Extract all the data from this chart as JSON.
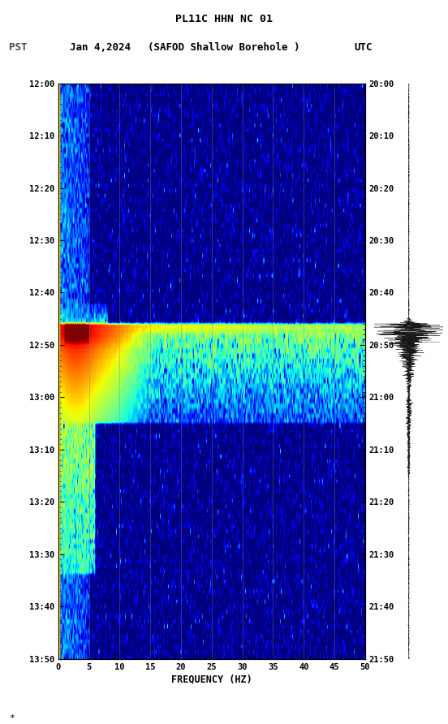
{
  "title_line1": "PL11C HHN NC 01",
  "title_line2": "(SAFOD Shallow Borehole )",
  "date_label": "Jan 4,2024",
  "left_tz": "PST",
  "right_tz": "UTC",
  "freq_min": 0,
  "freq_max": 50,
  "freq_label": "FREQUENCY (HZ)",
  "freq_ticks": [
    0,
    5,
    10,
    15,
    20,
    25,
    30,
    35,
    40,
    45,
    50
  ],
  "time_ticks_pst": [
    "12:00",
    "12:10",
    "12:20",
    "12:30",
    "12:40",
    "12:50",
    "13:00",
    "13:10",
    "13:20",
    "13:30",
    "13:40",
    "13:50"
  ],
  "time_ticks_utc": [
    "20:00",
    "20:10",
    "20:20",
    "20:30",
    "20:40",
    "20:50",
    "21:00",
    "21:10",
    "21:20",
    "21:30",
    "21:40",
    "21:50"
  ],
  "n_time": 115,
  "n_freq": 300,
  "bg_color": "#000080",
  "spec_cmap": "jet",
  "grid_color": "#808080",
  "grid_alpha": 0.45,
  "left_border_color": "#FFD700",
  "event_t": 48,
  "usgs_logo_color": "#1a6e1a",
  "fig_bg": "white",
  "fig_width": 5.52,
  "fig_height": 8.92,
  "vmin_pct": 40,
  "vmax_pct": 99.8
}
